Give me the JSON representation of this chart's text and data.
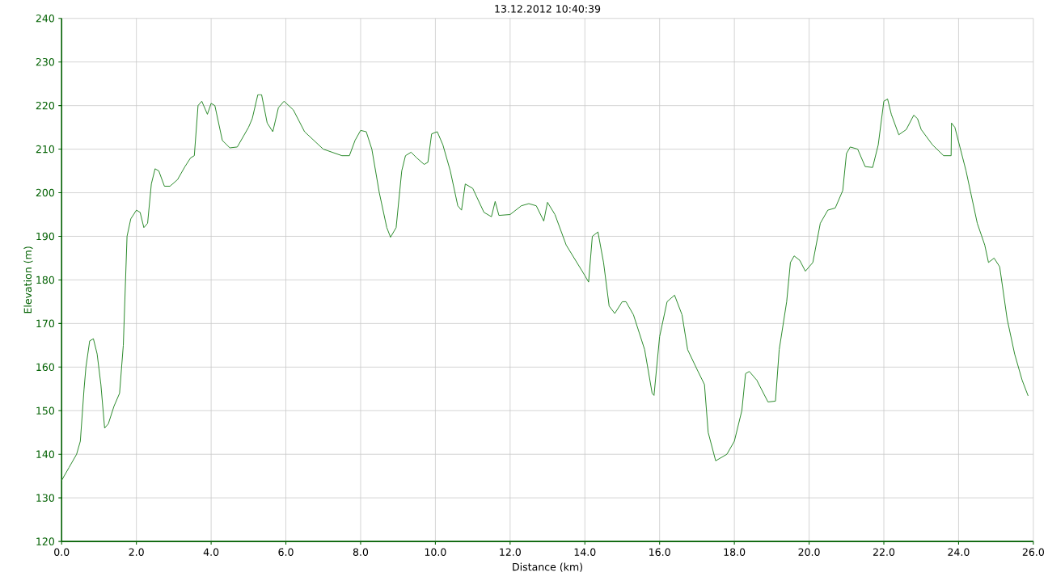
{
  "chart_data": {
    "type": "line",
    "title": "13.12.2012 10:40:39",
    "xlabel": "Distance (km)",
    "ylabel": "Elevation (m)",
    "xlim": [
      0,
      26
    ],
    "ylim": [
      120,
      240
    ],
    "xticks": [
      {
        "value": 0,
        "label": "0.0"
      },
      {
        "value": 2,
        "label": "2.0"
      },
      {
        "value": 4,
        "label": "4.0"
      },
      {
        "value": 6,
        "label": "6.0"
      },
      {
        "value": 8,
        "label": "8.0"
      },
      {
        "value": 10,
        "label": "10.0"
      },
      {
        "value": 12,
        "label": "12.0"
      },
      {
        "value": 14,
        "label": "14.0"
      },
      {
        "value": 16,
        "label": "16.0"
      },
      {
        "value": 18,
        "label": "18.0"
      },
      {
        "value": 20,
        "label": "20.0"
      },
      {
        "value": 22,
        "label": "22.0"
      },
      {
        "value": 24,
        "label": "24.0"
      },
      {
        "value": 26,
        "label": "26.0"
      }
    ],
    "yticks": [
      120,
      130,
      140,
      150,
      160,
      170,
      180,
      190,
      200,
      210,
      220,
      230,
      240
    ],
    "grid": true,
    "marker": "none",
    "line_style": "solid",
    "series": [
      {
        "color": "#2a8a2a",
        "x": [
          0.0,
          0.2,
          0.4,
          0.5,
          0.6,
          0.65,
          0.75,
          0.85,
          0.95,
          1.05,
          1.15,
          1.25,
          1.4,
          1.55,
          1.65,
          1.75,
          1.85,
          2.0,
          2.1,
          2.2,
          2.3,
          2.4,
          2.5,
          2.6,
          2.75,
          2.9,
          3.1,
          3.3,
          3.45,
          3.55,
          3.65,
          3.75,
          3.9,
          4.0,
          4.1,
          4.3,
          4.5,
          4.7,
          5.0,
          5.1,
          5.25,
          5.35,
          5.5,
          5.65,
          5.8,
          5.95,
          6.2,
          6.5,
          7.0,
          7.5,
          7.7,
          7.85,
          8.0,
          8.15,
          8.3,
          8.5,
          8.7,
          8.8,
          8.95,
          9.1,
          9.2,
          9.35,
          9.5,
          9.7,
          9.8,
          9.9,
          10.05,
          10.2,
          10.4,
          10.6,
          10.7,
          10.8,
          11.0,
          11.3,
          11.5,
          11.6,
          11.7,
          12.0,
          12.3,
          12.5,
          12.7,
          12.9,
          13.0,
          13.2,
          13.5,
          14.0,
          14.1,
          14.2,
          14.35,
          14.5,
          14.65,
          14.8,
          15.0,
          15.1,
          15.3,
          15.6,
          15.8,
          15.85,
          16.0,
          16.2,
          16.4,
          16.6,
          16.75,
          17.0,
          17.2,
          17.3,
          17.5,
          17.8,
          18.0,
          18.2,
          18.3,
          18.4,
          18.6,
          18.9,
          19.1,
          19.2,
          19.4,
          19.5,
          19.6,
          19.75,
          19.9,
          20.1,
          20.3,
          20.5,
          20.7,
          20.9,
          21.0,
          21.1,
          21.3,
          21.5,
          21.7,
          21.85,
          22.0,
          22.1,
          22.2,
          22.4,
          22.6,
          22.8,
          22.9,
          23.0,
          23.3,
          23.6,
          23.8,
          23.81,
          23.9,
          24.2,
          24.5,
          24.7,
          24.8,
          24.95,
          25.1,
          25.3,
          25.5,
          25.7,
          25.86
        ],
        "values": [
          134,
          137,
          140,
          143,
          155,
          160,
          166,
          166.5,
          163,
          156,
          146,
          147,
          151,
          154,
          165,
          190,
          194,
          196,
          195.5,
          192,
          193,
          202,
          205.5,
          205,
          201.5,
          201.5,
          203,
          206,
          208,
          208.5,
          220,
          221,
          218,
          220.5,
          220,
          212,
          210.3,
          210.5,
          215,
          217,
          222.5,
          222.5,
          216,
          214,
          219.5,
          221,
          219,
          214,
          210,
          208.5,
          208.5,
          212,
          214.3,
          214,
          210,
          200,
          192,
          189.8,
          192,
          205,
          208.5,
          209.3,
          208,
          206.5,
          207,
          213.5,
          214,
          211,
          205,
          197,
          196,
          202,
          201,
          195.5,
          194.5,
          198,
          194.8,
          195,
          197,
          197.5,
          197,
          193.5,
          197.8,
          195,
          188,
          181,
          179.5,
          190,
          191,
          184,
          174,
          172.3,
          175,
          175,
          172,
          164,
          154,
          153.5,
          167,
          175,
          176.5,
          172,
          164,
          159.5,
          156,
          145,
          138.5,
          140,
          143,
          150,
          158.5,
          159,
          157,
          152,
          152.2,
          164,
          175,
          184,
          185.5,
          184.5,
          182,
          184,
          193,
          196,
          196.5,
          200.5,
          209,
          210.5,
          210,
          206,
          205.8,
          211,
          221,
          221.5,
          218,
          213.3,
          214.5,
          217.8,
          217,
          214.5,
          211,
          208.5,
          208.5,
          216,
          215,
          205,
          193,
          188,
          184,
          185,
          183,
          171,
          163,
          157,
          153.4
        ]
      }
    ]
  }
}
